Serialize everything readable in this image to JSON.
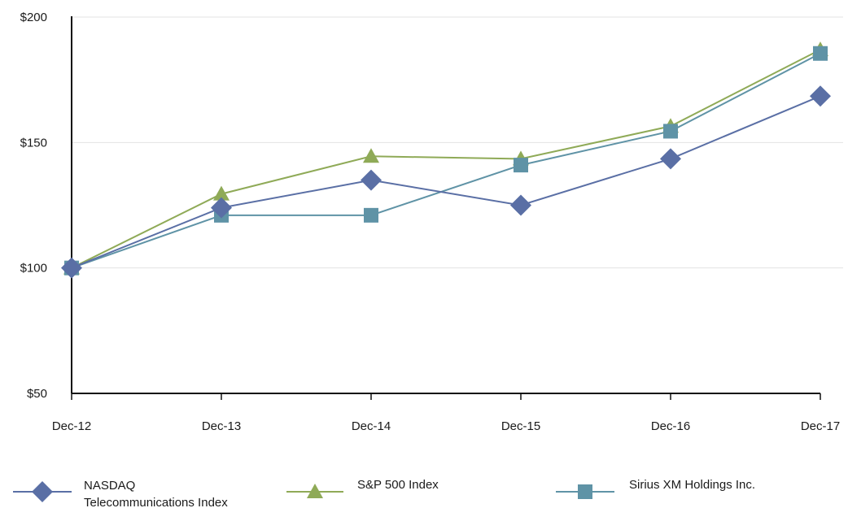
{
  "chart_data": {
    "type": "line",
    "categories": [
      "Dec-12",
      "Dec-13",
      "Dec-14",
      "Dec-15",
      "Dec-16",
      "Dec-17"
    ],
    "y_tick_labels": [
      "$50",
      "$100",
      "$150",
      "$200"
    ],
    "y_ticks": [
      50,
      100,
      150,
      200
    ],
    "ylim": [
      50,
      200
    ],
    "grid": "horizontal",
    "legend_position": "bottom",
    "series": [
      {
        "name": "NASDAQ Telecommunications Index",
        "name_lines": [
          "NASDAQ",
          "Telecommunications Index"
        ],
        "values": [
          100,
          124,
          135,
          125,
          143.5,
          168.5
        ],
        "color": "#5a6fa5",
        "marker": "diamond"
      },
      {
        "name": "S&P 500 Index",
        "name_lines": [
          "S&P 500 Index"
        ],
        "values": [
          100,
          129.5,
          144.5,
          143.5,
          156.5,
          187
        ],
        "color": "#8faa57",
        "marker": "triangle"
      },
      {
        "name": "Sirius XM Holdings Inc.",
        "name_lines": [
          "Sirius XM Holdings Inc."
        ],
        "values": [
          100,
          121,
          121,
          141,
          154.5,
          185.5
        ],
        "color": "#5f93a6",
        "marker": "square"
      }
    ]
  }
}
